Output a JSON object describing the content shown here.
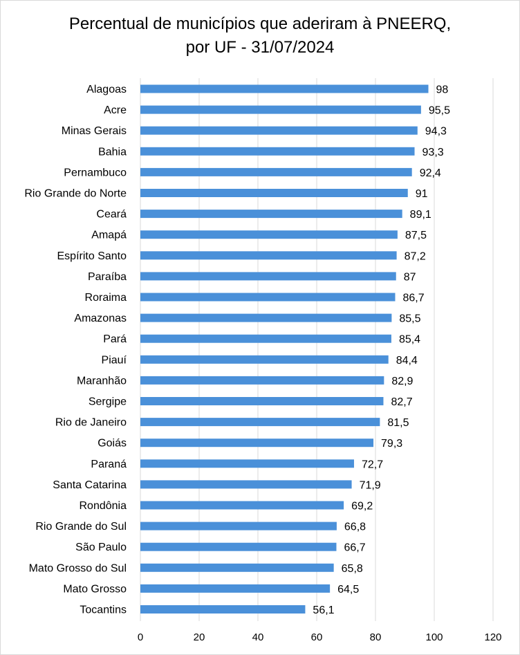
{
  "chart_data": {
    "type": "bar",
    "orientation": "horizontal",
    "title_line1": "Percentual de municípios que aderiram à PNEERQ,",
    "title_line2": "por UF - 31/07/2024",
    "xlabel": "",
    "ylabel": "",
    "xlim": [
      0,
      120
    ],
    "xticks": [
      "0",
      "20",
      "40",
      "60",
      "80",
      "100",
      "120"
    ],
    "grid": true,
    "bar_color": "#4a90d9",
    "categories": [
      "Alagoas",
      "Acre",
      "Minas Gerais",
      "Bahia",
      "Pernambuco",
      "Rio Grande do Norte",
      "Ceará",
      "Amapá",
      "Espírito Santo",
      "Paraíba",
      "Roraima",
      "Amazonas",
      "Pará",
      "Piauí",
      "Maranhão",
      "Sergipe",
      "Rio de Janeiro",
      "Goiás",
      "Paraná",
      "Santa Catarina",
      "Rondônia",
      "Rio Grande do Sul",
      "São Paulo",
      "Mato Grosso do Sul",
      "Mato Grosso",
      "Tocantins"
    ],
    "values": [
      98,
      95.5,
      94.3,
      93.3,
      92.4,
      91,
      89.1,
      87.5,
      87.2,
      87,
      86.7,
      85.5,
      85.4,
      84.4,
      82.9,
      82.7,
      81.5,
      79.3,
      72.7,
      71.9,
      69.2,
      66.8,
      66.7,
      65.8,
      64.5,
      56.1
    ],
    "value_labels": [
      "98",
      "95,5",
      "94,3",
      "93,3",
      "92,4",
      "91",
      "89,1",
      "87,5",
      "87,2",
      "87",
      "86,7",
      "85,5",
      "85,4",
      "84,4",
      "82,9",
      "82,7",
      "81,5",
      "79,3",
      "72,7",
      "71,9",
      "69,2",
      "66,8",
      "66,7",
      "65,8",
      "64,5",
      "56,1"
    ]
  }
}
